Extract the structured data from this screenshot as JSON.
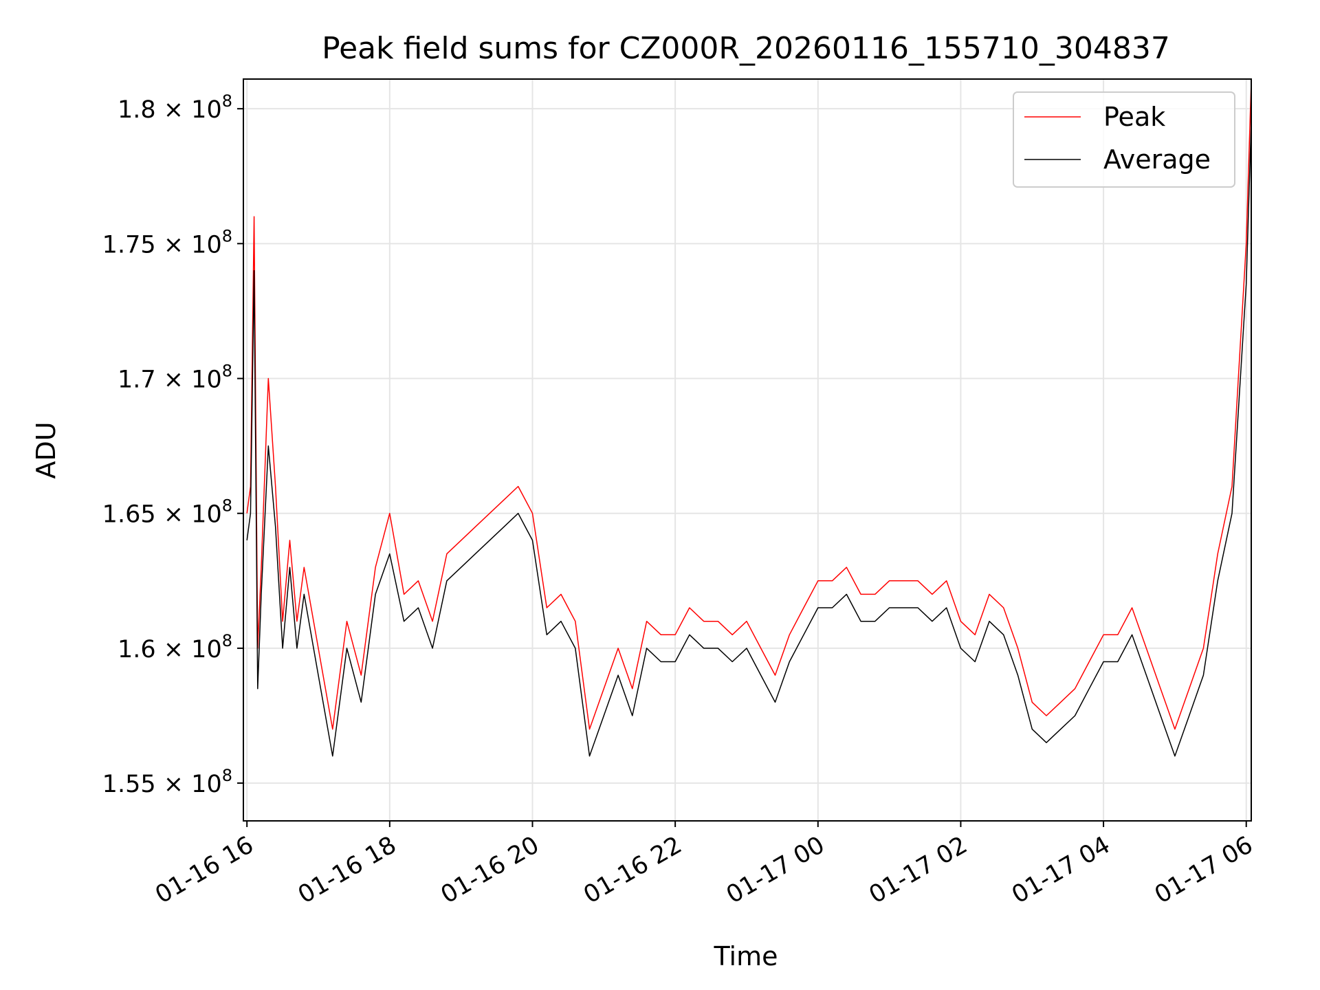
{
  "chart_data": {
    "type": "line",
    "title": "Peak field sums for CZ000R_20260116_155710_304837",
    "xlabel": "Time",
    "ylabel": "ADU",
    "x_unit": "hours since 01-16 16:00",
    "xlim": [
      -0.05,
      14.07
    ],
    "ylim": [
      153600000,
      181100000
    ],
    "x_ticks": [
      {
        "value": 0,
        "label": "01-16 16"
      },
      {
        "value": 2,
        "label": "01-16 18"
      },
      {
        "value": 4,
        "label": "01-16 20"
      },
      {
        "value": 6,
        "label": "01-16 22"
      },
      {
        "value": 8,
        "label": "01-17 00"
      },
      {
        "value": 10,
        "label": "01-17 02"
      },
      {
        "value": 12,
        "label": "01-17 04"
      },
      {
        "value": 14,
        "label": "01-17 06"
      }
    ],
    "y_ticks": [
      {
        "value": 155000000,
        "mantissa": "1.55"
      },
      {
        "value": 160000000,
        "mantissa": "1.6"
      },
      {
        "value": 165000000,
        "mantissa": "1.65"
      },
      {
        "value": 170000000,
        "mantissa": "1.7"
      },
      {
        "value": 175000000,
        "mantissa": "1.75"
      },
      {
        "value": 180000000,
        "mantissa": "1.8"
      }
    ],
    "y_tick_suffix": "× 10",
    "y_tick_exponent": "8",
    "grid": true,
    "legend_position": "top-right",
    "series": [
      {
        "name": "Peak",
        "color": "#ff0000",
        "x": [
          0.0,
          0.05,
          0.1,
          0.15,
          0.2,
          0.3,
          0.4,
          0.5,
          0.6,
          0.7,
          0.8,
          1.0,
          1.2,
          1.4,
          1.6,
          1.8,
          2.0,
          2.2,
          2.4,
          2.6,
          2.8,
          3.0,
          3.2,
          3.4,
          3.6,
          3.8,
          4.0,
          4.2,
          4.4,
          4.6,
          4.8,
          5.0,
          5.2,
          5.4,
          5.6,
          5.8,
          6.0,
          6.2,
          6.4,
          6.6,
          6.8,
          7.0,
          7.2,
          7.4,
          7.6,
          7.8,
          8.0,
          8.2,
          8.4,
          8.6,
          8.8,
          9.0,
          9.2,
          9.4,
          9.6,
          9.8,
          10.0,
          10.2,
          10.4,
          10.6,
          10.8,
          11.0,
          11.2,
          11.4,
          11.6,
          11.8,
          12.0,
          12.2,
          12.4,
          12.6,
          12.8,
          13.0,
          13.2,
          13.4,
          13.6,
          13.8,
          14.0,
          14.07
        ],
        "values": [
          165000000,
          166000000,
          176000000,
          160000000,
          163000000,
          170000000,
          166000000,
          161000000,
          164000000,
          161000000,
          163000000,
          160000000,
          157000000,
          161000000,
          159000000,
          163000000,
          165000000,
          162000000,
          162500000,
          161000000,
          163500000,
          164000000,
          164500000,
          165000000,
          165500000,
          166000000,
          165000000,
          161500000,
          162000000,
          161000000,
          157000000,
          158500000,
          160000000,
          158500000,
          161000000,
          160500000,
          160500000,
          161500000,
          161000000,
          161000000,
          160500000,
          161000000,
          160000000,
          159000000,
          160500000,
          161500000,
          162500000,
          162500000,
          163000000,
          162000000,
          162000000,
          162500000,
          162500000,
          162500000,
          162000000,
          162500000,
          161000000,
          160500000,
          162000000,
          161500000,
          160000000,
          158000000,
          157500000,
          158000000,
          158500000,
          159500000,
          160500000,
          160500000,
          161500000,
          160000000,
          158500000,
          157000000,
          158500000,
          160000000,
          163500000,
          166000000,
          175000000,
          181000000
        ]
      },
      {
        "name": "Average",
        "color": "#000000",
        "x": [
          0.0,
          0.05,
          0.1,
          0.15,
          0.2,
          0.3,
          0.4,
          0.5,
          0.6,
          0.7,
          0.8,
          1.0,
          1.2,
          1.4,
          1.6,
          1.8,
          2.0,
          2.2,
          2.4,
          2.6,
          2.8,
          3.0,
          3.2,
          3.4,
          3.6,
          3.8,
          4.0,
          4.2,
          4.4,
          4.6,
          4.8,
          5.0,
          5.2,
          5.4,
          5.6,
          5.8,
          6.0,
          6.2,
          6.4,
          6.6,
          6.8,
          7.0,
          7.2,
          7.4,
          7.6,
          7.8,
          8.0,
          8.2,
          8.4,
          8.6,
          8.8,
          9.0,
          9.2,
          9.4,
          9.6,
          9.8,
          10.0,
          10.2,
          10.4,
          10.6,
          10.8,
          11.0,
          11.2,
          11.4,
          11.6,
          11.8,
          12.0,
          12.2,
          12.4,
          12.6,
          12.8,
          13.0,
          13.2,
          13.4,
          13.6,
          13.8,
          14.0,
          14.07
        ],
        "values": [
          164000000,
          165000000,
          174000000,
          158500000,
          162000000,
          167500000,
          164500000,
          160000000,
          163000000,
          160000000,
          162000000,
          159000000,
          156000000,
          160000000,
          158000000,
          162000000,
          163500000,
          161000000,
          161500000,
          160000000,
          162500000,
          163000000,
          163500000,
          164000000,
          164500000,
          165000000,
          164000000,
          160500000,
          161000000,
          160000000,
          156000000,
          157500000,
          159000000,
          157500000,
          160000000,
          159500000,
          159500000,
          160500000,
          160000000,
          160000000,
          159500000,
          160000000,
          159000000,
          158000000,
          159500000,
          160500000,
          161500000,
          161500000,
          162000000,
          161000000,
          161000000,
          161500000,
          161500000,
          161500000,
          161000000,
          161500000,
          160000000,
          159500000,
          161000000,
          160500000,
          159000000,
          157000000,
          156500000,
          157000000,
          157500000,
          158500000,
          159500000,
          159500000,
          160500000,
          159000000,
          157500000,
          156000000,
          157500000,
          159000000,
          162500000,
          165000000,
          173500000,
          179500000
        ]
      }
    ]
  }
}
